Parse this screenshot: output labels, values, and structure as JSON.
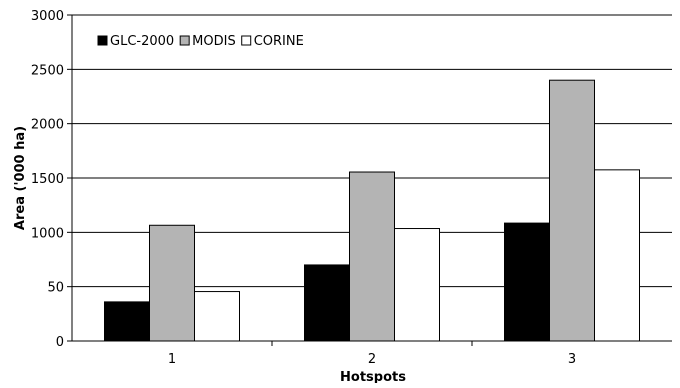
{
  "chart_data": {
    "type": "bar",
    "title": "",
    "xlabel": "Hotspots",
    "ylabel": "Area ('000 ha)",
    "categories": [
      "1",
      "2",
      "3"
    ],
    "series": [
      {
        "name": "GLC-2000",
        "values": [
          360,
          700,
          1085
        ],
        "color": "#000000"
      },
      {
        "name": "MODIS",
        "values": [
          1065,
          1555,
          2400
        ],
        "color": "#b4b4b4"
      },
      {
        "name": "CORINE",
        "values": [
          455,
          1035,
          1575
        ],
        "color": "#ffffff"
      }
    ],
    "y_tick_labels": [
      "0",
      "50",
      "1000",
      "1500",
      "2000",
      "2500",
      "3000"
    ],
    "ylim": [
      0,
      3000
    ],
    "grid": true,
    "legend_position": "top-left"
  }
}
